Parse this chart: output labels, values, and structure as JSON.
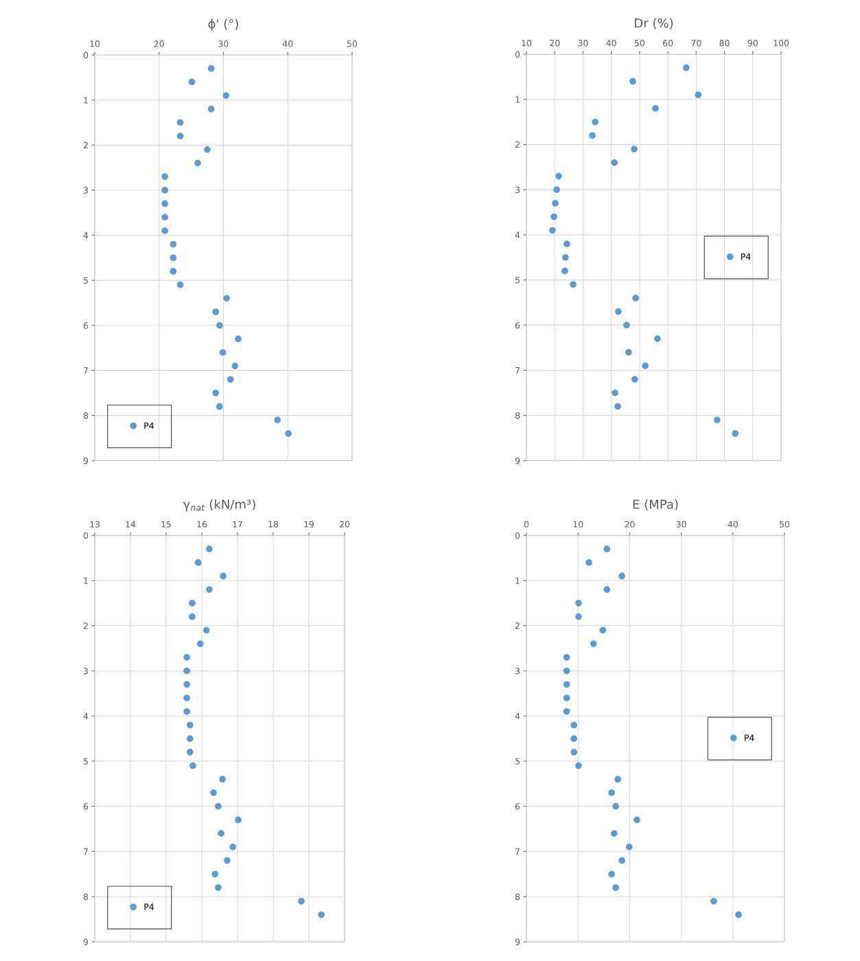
{
  "chart_data": [
    {
      "type": "scatter",
      "title": "ϕ' (°)",
      "xlim": [
        10,
        50
      ],
      "xticks": [
        10,
        20,
        30,
        40,
        50
      ],
      "ylim": [
        9,
        0
      ],
      "yticks": [
        0,
        1,
        2,
        3,
        4,
        5,
        6,
        7,
        8,
        9
      ],
      "grid": true,
      "legend": "bottom left",
      "marker": "circle",
      "series": [
        {
          "name": "P4",
          "color": "#5b9bd5",
          "x": [
            28.1,
            25.1,
            30.4,
            28.1,
            23.3,
            23.3,
            27.5,
            26.0,
            20.9,
            20.9,
            20.9,
            20.9,
            20.9,
            22.2,
            22.2,
            22.2,
            23.3,
            30.5,
            28.8,
            29.4,
            32.3,
            29.9,
            31.8,
            31.1,
            28.8,
            29.4,
            38.4,
            40.1
          ],
          "values": [
            0.3,
            0.6,
            0.9,
            1.2,
            1.5,
            1.8,
            2.1,
            2.4,
            2.7,
            3.0,
            3.3,
            3.6,
            3.9,
            4.2,
            4.5,
            4.8,
            5.1,
            5.4,
            5.7,
            6.0,
            6.3,
            6.6,
            6.9,
            7.2,
            7.5,
            7.8,
            8.1,
            8.4
          ]
        }
      ]
    },
    {
      "type": "scatter",
      "title": "Dr (%)",
      "xlim": [
        10,
        100
      ],
      "xticks": [
        10,
        20,
        30,
        40,
        50,
        60,
        70,
        80,
        90,
        100
      ],
      "ylim": [
        9,
        0
      ],
      "yticks": [
        0,
        1,
        2,
        3,
        4,
        5,
        6,
        7,
        8,
        9
      ],
      "grid": true,
      "legend": "right",
      "marker": "circle",
      "series": [
        {
          "name": "P4",
          "color": "#5b9bd5",
          "x": [
            66.5,
            47.6,
            70.7,
            55.6,
            34.3,
            33.3,
            48.1,
            41.1,
            21.4,
            20.7,
            20.2,
            19.7,
            19.2,
            24.3,
            23.8,
            23.6,
            26.5,
            48.6,
            42.5,
            45.4,
            56.3,
            46.1,
            52.0,
            48.3,
            41.3,
            42.3,
            77.4,
            83.8
          ],
          "values": [
            0.3,
            0.6,
            0.9,
            1.2,
            1.5,
            1.8,
            2.1,
            2.4,
            2.7,
            3.0,
            3.3,
            3.6,
            3.9,
            4.2,
            4.5,
            4.8,
            5.1,
            5.4,
            5.7,
            6.0,
            6.3,
            6.6,
            6.9,
            7.2,
            7.5,
            7.8,
            8.1,
            8.4
          ]
        }
      ]
    },
    {
      "type": "scatter",
      "title": "γ$_{nat}$ (kN/m³)",
      "xlim": [
        13,
        20
      ],
      "xticks": [
        13,
        14,
        15,
        16,
        17,
        18,
        19,
        20
      ],
      "ylim": [
        9,
        0
      ],
      "yticks": [
        0,
        1,
        2,
        3,
        4,
        5,
        6,
        7,
        8,
        9
      ],
      "grid": true,
      "legend": "bottom left",
      "marker": "circle",
      "series": [
        {
          "name": "P4",
          "color": "#5b9bd5",
          "x": [
            16.21,
            15.9,
            16.6,
            16.21,
            15.73,
            15.73,
            16.13,
            15.96,
            15.58,
            15.58,
            15.58,
            15.58,
            15.58,
            15.67,
            15.67,
            15.67,
            15.75,
            16.58,
            16.33,
            16.46,
            17.02,
            16.54,
            16.87,
            16.71,
            16.37,
            16.46,
            18.79,
            19.35
          ],
          "values": [
            0.3,
            0.6,
            0.9,
            1.2,
            1.5,
            1.8,
            2.1,
            2.4,
            2.7,
            3.0,
            3.3,
            3.6,
            3.9,
            4.2,
            4.5,
            4.8,
            5.1,
            5.4,
            5.7,
            6.0,
            6.3,
            6.6,
            6.9,
            7.2,
            7.5,
            7.8,
            8.1,
            8.4
          ]
        }
      ]
    },
    {
      "type": "scatter",
      "title": "E (MPa)",
      "xlim": [
        0,
        50
      ],
      "xticks": [
        0,
        10,
        20,
        30,
        40,
        50
      ],
      "ylim": [
        9,
        0
      ],
      "yticks": [
        0,
        1,
        2,
        3,
        4,
        5,
        6,
        7,
        8,
        9
      ],
      "grid": true,
      "legend": "right",
      "marker": "circle",
      "series": [
        {
          "name": "P4",
          "color": "#5b9bd5",
          "x": [
            15.6,
            12.1,
            18.5,
            15.6,
            10.1,
            10.1,
            14.8,
            13.0,
            7.8,
            7.8,
            7.8,
            7.8,
            7.8,
            9.2,
            9.2,
            9.2,
            10.1,
            17.7,
            16.5,
            17.3,
            21.4,
            17.0,
            19.9,
            18.5,
            16.5,
            17.3,
            36.3,
            41.1
          ],
          "values": [
            0.3,
            0.6,
            0.9,
            1.2,
            1.5,
            1.8,
            2.1,
            2.4,
            2.7,
            3.0,
            3.3,
            3.6,
            3.9,
            4.2,
            4.5,
            4.8,
            5.1,
            5.4,
            5.7,
            6.0,
            6.3,
            6.6,
            6.9,
            7.2,
            7.5,
            7.8,
            8.1,
            8.4
          ]
        }
      ]
    }
  ]
}
